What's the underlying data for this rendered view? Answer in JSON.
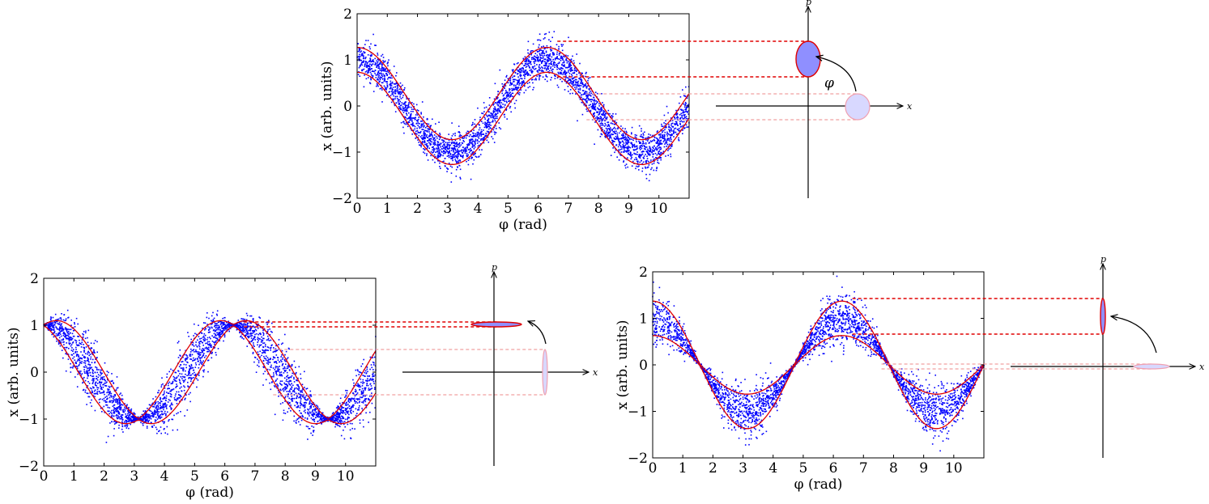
{
  "colors": {
    "points": "#0000ff",
    "envelope": "#e00000",
    "state_fill": "#8f8fff",
    "state_fill_faint": "#d8d8ff",
    "axis": "#000000"
  },
  "chart_data": [
    {
      "type": "scatter",
      "xlabel": "φ (rad)",
      "ylabel": "x (arb. units)",
      "xlim": [
        0,
        11
      ],
      "ylim": [
        -2,
        2
      ],
      "xticks": [
        "0",
        "1",
        "2",
        "3",
        "4",
        "5",
        "6",
        "7",
        "8",
        "9",
        "10"
      ],
      "yticks": [
        "−2",
        "−1",
        "0",
        "1",
        "2"
      ],
      "mean": "cos(φ)",
      "envelope_halfwidth": {
        "along_cos": 0.27,
        "along_sin": 0.27
      },
      "phase_space": {
        "xlabel": "x",
        "plabel": "p",
        "rotation_label": "φ"
      }
    },
    {
      "type": "scatter",
      "xlabel": "φ (rad)",
      "ylabel": "x (arb. units)",
      "xlim": [
        0,
        11
      ],
      "ylim": [
        -2,
        2
      ],
      "xticks": [
        "0",
        "1",
        "2",
        "3",
        "4",
        "5",
        "6",
        "7",
        "8",
        "9",
        "10"
      ],
      "yticks": [
        "−2",
        "−1",
        "0",
        "1",
        "2"
      ],
      "mean": "cos(φ)",
      "envelope_halfwidth": {
        "along_cos": 0.02,
        "along_sin": 0.45
      },
      "phase_space": {
        "xlabel": "x",
        "plabel": "p",
        "rotation_label": ""
      }
    },
    {
      "type": "scatter",
      "xlabel": "φ (rad)",
      "ylabel": "x (arb. units)",
      "xlim": [
        0,
        11
      ],
      "ylim": [
        -2,
        2
      ],
      "xticks": [
        "0",
        "1",
        "2",
        "3",
        "4",
        "5",
        "6",
        "7",
        "8",
        "9",
        "10"
      ],
      "yticks": [
        "−2",
        "−1",
        "0",
        "1",
        "2"
      ],
      "mean": "cos(φ)",
      "envelope_halfwidth": {
        "along_cos": 0.37,
        "along_sin": 0.02
      },
      "phase_space": {
        "xlabel": "x",
        "plabel": "p",
        "rotation_label": ""
      }
    }
  ]
}
